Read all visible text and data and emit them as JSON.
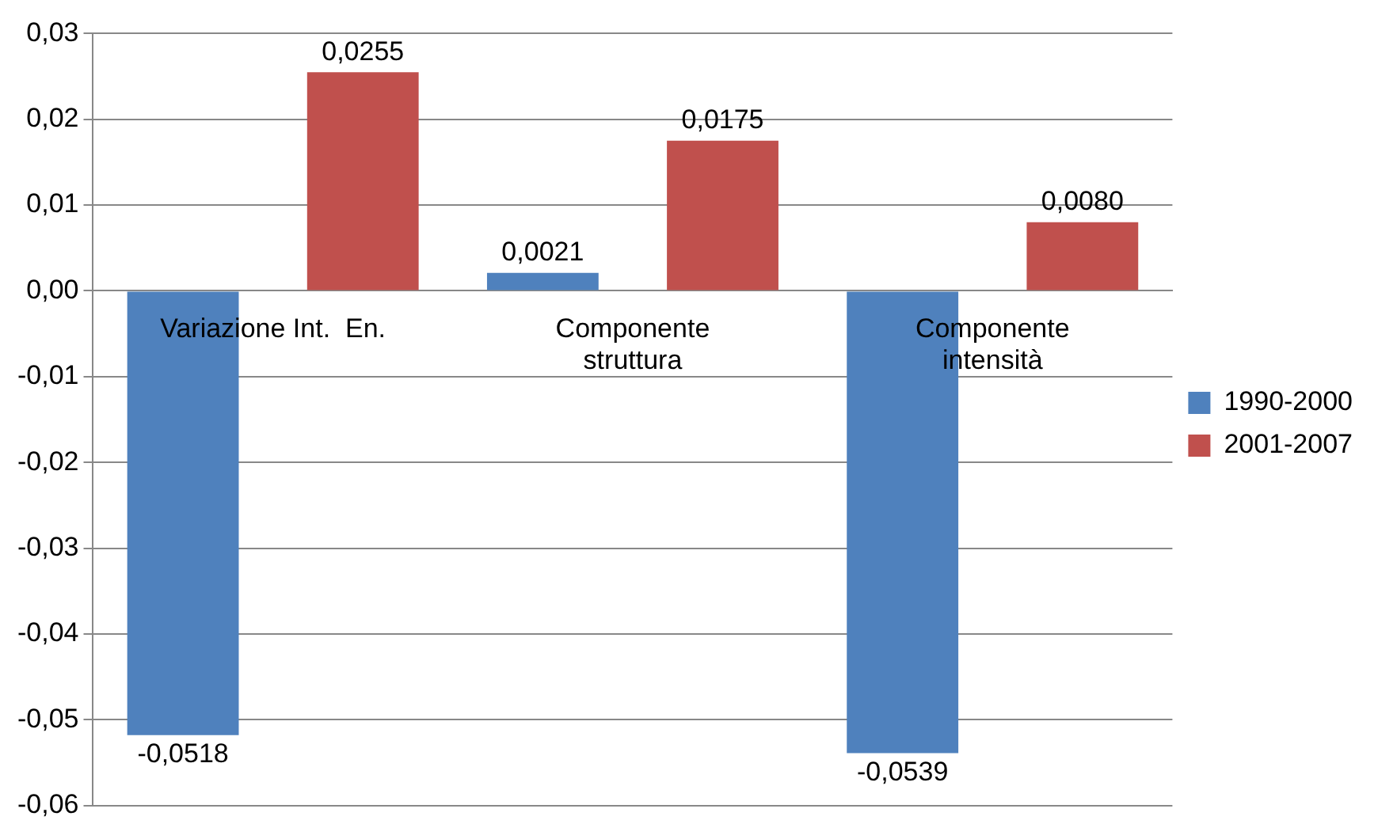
{
  "chart_data": {
    "type": "bar",
    "categories": [
      "Variazione Int.  En.",
      "Componente\nstruttura",
      "Componente\nintensità"
    ],
    "series": [
      {
        "name": "1990-2000",
        "color": "#4f81bd",
        "values": [
          -0.0518,
          0.0021,
          -0.0539
        ],
        "value_labels": [
          "-0,0518",
          "0,0021",
          "-0,0539"
        ]
      },
      {
        "name": "2001-2007",
        "color": "#c0504d",
        "values": [
          0.0255,
          0.0175,
          0.008
        ],
        "value_labels": [
          "0,0255",
          "0,0175",
          "0,0080"
        ]
      }
    ],
    "ylim": [
      -0.06,
      0.03
    ],
    "yticks": [
      {
        "value": 0.03,
        "label": "0,03"
      },
      {
        "value": 0.02,
        "label": "0,02"
      },
      {
        "value": 0.01,
        "label": "0,01"
      },
      {
        "value": 0,
        "label": "0,00"
      },
      {
        "value": -0.01,
        "label": "-0,01"
      },
      {
        "value": -0.02,
        "label": "-0,02"
      },
      {
        "value": -0.03,
        "label": "-0,03"
      },
      {
        "value": -0.04,
        "label": "-0,04"
      },
      {
        "value": -0.05,
        "label": "-0,05"
      },
      {
        "value": -0.06,
        "label": "-0,06"
      }
    ],
    "grid": "y",
    "legend": "right"
  }
}
